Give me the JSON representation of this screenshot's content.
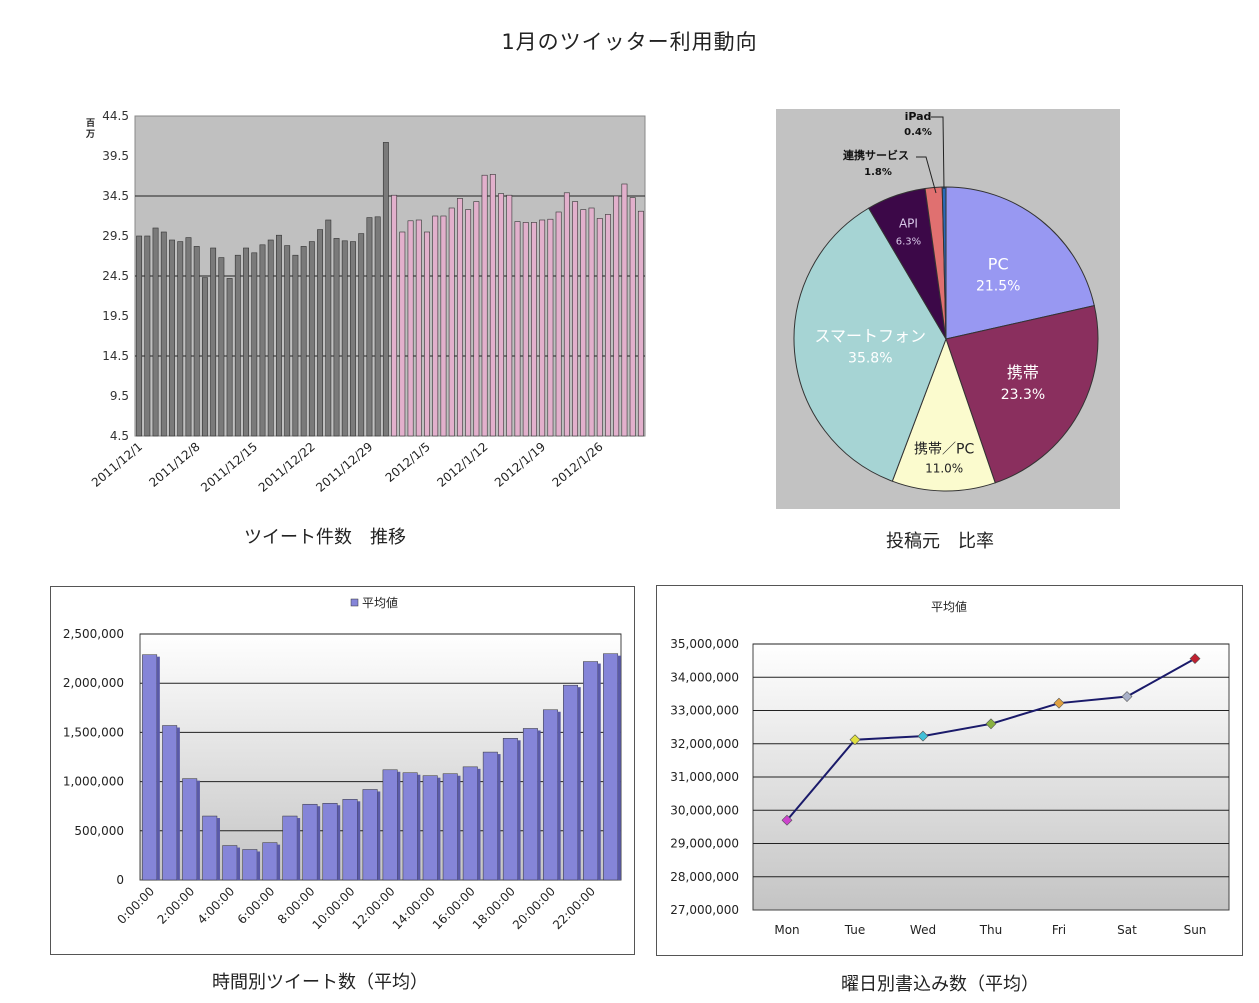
{
  "page": {
    "title": "1月のツイッター利用動向"
  },
  "chart_data": [
    {
      "id": "daily",
      "type": "bar",
      "title": "",
      "caption": "ツイート件数　推移",
      "unit_label": "百万",
      "ylim": [
        4.5,
        44.5
      ],
      "yticks": [
        4.5,
        9.5,
        14.5,
        19.5,
        24.5,
        29.5,
        34.5,
        39.5,
        44.5
      ],
      "xtick_labels": [
        "2011/12/1",
        "2011/12/8",
        "2011/12/15",
        "2011/12/22",
        "2011/12/29",
        "2012/1/5",
        "2012/1/12",
        "2012/1/19",
        "2012/1/26"
      ],
      "colors": {
        "dec": "#7a7a7a",
        "jan": "#e2b0cc",
        "plot_bg": "#c0c0c0"
      },
      "dec_values": [
        29.5,
        29.5,
        30.5,
        30,
        29,
        28.8,
        29.3,
        28.2,
        24.3,
        28,
        26.8,
        24.2,
        27.1,
        28,
        27.4,
        28.4,
        29,
        29.6,
        28.3,
        27.1,
        28.2,
        28.8,
        30.3,
        31.5,
        29.2,
        28.9,
        28.8,
        29.8,
        31.8,
        31.9,
        41.2
      ],
      "jan_values": [
        34.6,
        30,
        31.4,
        31.5,
        30,
        32,
        32,
        33,
        34.2,
        32.8,
        33.8,
        37.1,
        37.2,
        34.8,
        34.6,
        31.3,
        31.2,
        31.2,
        31.5,
        31.6,
        32.5,
        34.9,
        33.8,
        32.8,
        33,
        31.7,
        32.2,
        34.5,
        36,
        34.3,
        32.6
      ]
    },
    {
      "id": "source",
      "type": "pie",
      "title": "",
      "caption": "投稿元　比率",
      "slices": [
        {
          "label": "PC",
          "pct": "21.5%",
          "value": 21.5,
          "color": "#9898f2"
        },
        {
          "label": "携帯",
          "pct": "23.3%",
          "value": 23.3,
          "color": "#8a2f5e"
        },
        {
          "label": "携帯／PC",
          "pct": "11.0%",
          "value": 11.0,
          "color": "#fbfbce"
        },
        {
          "label": "スマートフォン",
          "pct": "35.8%",
          "value": 35.8,
          "color": "#a6d4d4"
        },
        {
          "label": "API",
          "pct": "6.3%",
          "value": 6.3,
          "color": "#3c0848"
        },
        {
          "label": "連携サービス",
          "pct": "1.8%",
          "value": 1.8,
          "color": "#e07070"
        },
        {
          "label": "iPad",
          "pct": "0.4%",
          "value": 0.4,
          "color": "#2a6ab8"
        }
      ]
    },
    {
      "id": "hourly",
      "type": "bar",
      "title": "",
      "caption": "時間別ツイート数（平均）",
      "legend": "平均値",
      "ylim": [
        0,
        2500000
      ],
      "yticks": [
        "0",
        "500,000",
        "1,000,000",
        "1,500,000",
        "2,000,000",
        "2,500,000"
      ],
      "xtick_labels": [
        "0:00:00",
        "2:00:00",
        "4:00:00",
        "6:00:00",
        "8:00:00",
        "10:00:00",
        "12:00:00",
        "14:00:00",
        "16:00:00",
        "18:00:00",
        "20:00:00",
        "22:00:00"
      ],
      "values": [
        2290000,
        1570000,
        1030000,
        650000,
        350000,
        310000,
        380000,
        650000,
        770000,
        780000,
        820000,
        920000,
        1120000,
        1090000,
        1060000,
        1080000,
        1150000,
        1300000,
        1440000,
        1540000,
        1730000,
        1980000,
        2220000,
        2300000
      ],
      "color": "#8585d8"
    },
    {
      "id": "weekday",
      "type": "line",
      "title": "平均値",
      "caption": "曜日別書込み数（平均）",
      "ylim": [
        27000000,
        35000000
      ],
      "yticks": [
        "27,000,000",
        "28,000,000",
        "29,000,000",
        "30,000,000",
        "31,000,000",
        "32,000,000",
        "33,000,000",
        "34,000,000",
        "35,000,000"
      ],
      "categories": [
        "Mon",
        "Tue",
        "Wed",
        "Thu",
        "Fri",
        "Sat",
        "Sun"
      ],
      "values": [
        29700000,
        32120000,
        32230000,
        32600000,
        33220000,
        33420000,
        34560000
      ],
      "marker_colors": [
        "#cc44cc",
        "#e0e040",
        "#40c0d8",
        "#88b040",
        "#e0a040",
        "#a8b0c8",
        "#c02030"
      ],
      "line_color": "#1a1a6a"
    }
  ]
}
